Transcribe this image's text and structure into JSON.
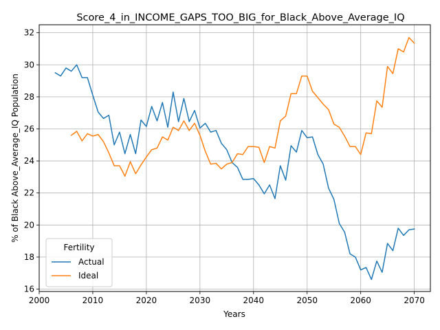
{
  "chart_data": {
    "type": "line",
    "title": "Score_4_in_INCOME_GAPS_TOO_BIG_for_Black_Above_Average_IQ",
    "xlabel": "Years",
    "ylabel": "% of Black Above_Average_IQ Population",
    "xlim": [
      2000,
      2073
    ],
    "ylim": [
      15.85,
      32.5
    ],
    "xticks": [
      2000,
      2010,
      2020,
      2030,
      2040,
      2050,
      2060,
      2070
    ],
    "yticks": [
      16,
      18,
      20,
      22,
      24,
      26,
      28,
      30,
      32
    ],
    "grid": true,
    "legend": {
      "title": "Fertility",
      "placement": "lower-left"
    },
    "series": [
      {
        "name": "Actual",
        "color": "#1f77b4",
        "x": [
          2003,
          2004,
          2005,
          2006,
          2007,
          2008,
          2009,
          2010,
          2011,
          2012,
          2013,
          2014,
          2015,
          2016,
          2017,
          2018,
          2019,
          2020,
          2021,
          2022,
          2023,
          2024,
          2025,
          2026,
          2027,
          2028,
          2029,
          2030,
          2031,
          2032,
          2033,
          2034,
          2035,
          2036,
          2037,
          2038,
          2039,
          2040,
          2041,
          2042,
          2043,
          2044,
          2045,
          2046,
          2047,
          2048,
          2049,
          2050,
          2051,
          2052,
          2053,
          2054,
          2055,
          2056,
          2057,
          2058,
          2059,
          2060,
          2061,
          2062,
          2063,
          2064,
          2065,
          2066,
          2067,
          2068,
          2069,
          2070
        ],
        "values": [
          29.5,
          29.3,
          29.8,
          29.6,
          30.0,
          29.2,
          29.2,
          28.1,
          27.05,
          26.65,
          26.85,
          25.0,
          25.8,
          24.45,
          25.65,
          24.45,
          26.55,
          26.15,
          27.4,
          26.5,
          27.65,
          26.1,
          28.3,
          26.45,
          27.9,
          26.45,
          27.15,
          26.05,
          26.35,
          25.8,
          25.9,
          25.1,
          24.7,
          23.9,
          23.6,
          22.85,
          22.85,
          22.9,
          22.5,
          21.95,
          22.5,
          21.65,
          23.7,
          22.8,
          24.95,
          24.55,
          25.9,
          25.45,
          25.5,
          24.4,
          23.8,
          22.3,
          21.6,
          20.1,
          19.55,
          18.2,
          18.0,
          17.2,
          17.35,
          16.6,
          17.75,
          17.05,
          18.85,
          18.4,
          19.8,
          19.35,
          19.7,
          19.75
        ]
      },
      {
        "name": "Ideal",
        "color": "#ff7f0e",
        "x": [
          2006,
          2007,
          2008,
          2009,
          2010,
          2011,
          2012,
          2013,
          2014,
          2015,
          2016,
          2017,
          2018,
          2019,
          2020,
          2021,
          2022,
          2023,
          2024,
          2025,
          2026,
          2027,
          2028,
          2029,
          2030,
          2031,
          2032,
          2033,
          2034,
          2035,
          2036,
          2037,
          2038,
          2039,
          2040,
          2041,
          2042,
          2043,
          2044,
          2045,
          2046,
          2047,
          2048,
          2049,
          2050,
          2051,
          2052,
          2053,
          2054,
          2055,
          2056,
          2057,
          2058,
          2059,
          2060,
          2061,
          2062,
          2063,
          2064,
          2065,
          2066,
          2067,
          2068,
          2069,
          2070
        ],
        "values": [
          25.6,
          25.85,
          25.25,
          25.7,
          25.55,
          25.65,
          25.2,
          24.5,
          23.7,
          23.7,
          23.05,
          23.95,
          23.2,
          23.75,
          24.25,
          24.7,
          24.8,
          25.5,
          25.3,
          26.1,
          25.9,
          26.5,
          25.9,
          26.35,
          25.6,
          24.6,
          23.8,
          23.85,
          23.5,
          23.8,
          23.9,
          24.45,
          24.4,
          24.9,
          24.9,
          24.85,
          23.9,
          24.9,
          24.8,
          26.5,
          26.8,
          28.2,
          28.2,
          29.3,
          29.3,
          28.35,
          27.95,
          27.55,
          27.2,
          26.3,
          26.1,
          25.55,
          24.9,
          24.9,
          24.4,
          25.75,
          25.7,
          27.75,
          27.35,
          29.9,
          29.45,
          31.0,
          30.8,
          31.7,
          31.35
        ]
      }
    ]
  }
}
